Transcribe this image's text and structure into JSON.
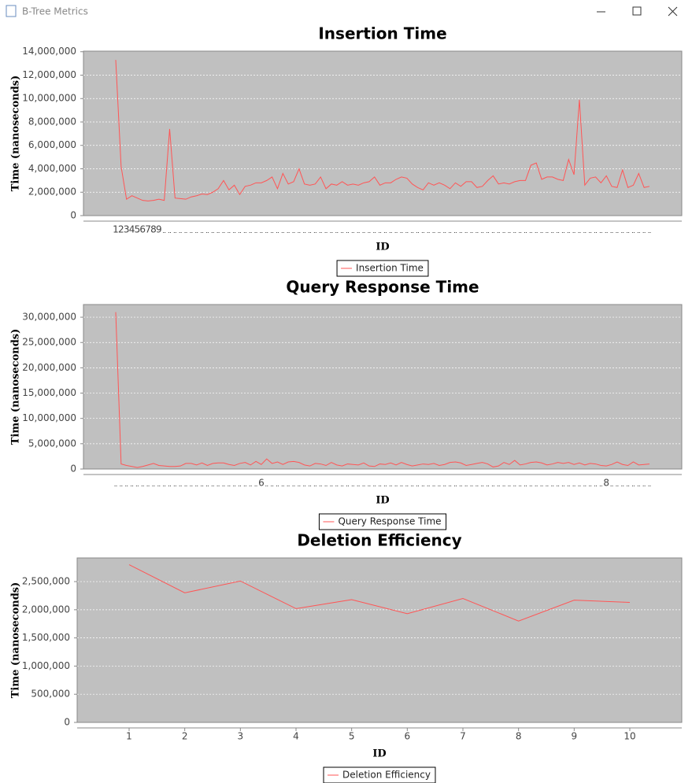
{
  "window_title": "B-Tree Metrics",
  "chart_data": [
    {
      "type": "line",
      "title": "Insertion Time",
      "x_label": "ID",
      "y_label": "Time (nanoseconds)",
      "grid": true,
      "legend": "bottom",
      "categories": [
        1,
        2,
        3,
        4,
        5,
        6,
        7,
        8,
        9,
        null,
        null,
        null,
        null,
        null,
        null,
        null,
        null,
        null,
        null,
        null,
        null,
        null,
        null,
        null,
        null,
        null,
        null,
        null,
        null,
        null,
        null,
        null,
        null,
        null,
        null,
        null,
        null,
        null,
        null,
        null,
        null,
        null,
        null,
        null,
        null,
        null,
        null,
        null,
        null,
        null,
        null,
        null,
        null,
        null,
        null,
        null,
        null,
        null,
        null,
        null,
        null,
        null,
        null,
        null,
        null,
        null,
        null,
        null,
        null,
        null,
        null,
        null,
        null,
        null,
        null,
        null,
        null,
        null,
        null,
        null,
        null,
        null,
        null,
        null,
        null,
        null,
        null,
        null,
        null,
        null,
        null,
        null,
        null,
        null,
        null,
        null,
        null,
        null,
        null,
        null
      ],
      "series": [
        {
          "name": "Insertion Time",
          "color": "#ff5555",
          "values": [
            13300000,
            4200000,
            1400000,
            1700000,
            1500000,
            1300000,
            1250000,
            1300000,
            1400000,
            1300000,
            7400000,
            1500000,
            1450000,
            1400000,
            1600000,
            1700000,
            1850000,
            1800000,
            2000000,
            2300000,
            3000000,
            2200000,
            2600000,
            1800000,
            2500000,
            2600000,
            2800000,
            2800000,
            3000000,
            3300000,
            2300000,
            3600000,
            2700000,
            2900000,
            4000000,
            2700000,
            2600000,
            2700000,
            3300000,
            2300000,
            2700000,
            2600000,
            2900000,
            2600000,
            2700000,
            2600000,
            2800000,
            2900000,
            3300000,
            2600000,
            2800000,
            2800000,
            3100000,
            3300000,
            3200000,
            2700000,
            2400000,
            2200000,
            2800000,
            2600000,
            2800000,
            2600000,
            2300000,
            2800000,
            2500000,
            2900000,
            2900000,
            2400000,
            2500000,
            3000000,
            3400000,
            2700000,
            2800000,
            2700000,
            2900000,
            3000000,
            3000000,
            4300000,
            4500000,
            3100000,
            3300000,
            3300000,
            3100000,
            3000000,
            4800000,
            3500000,
            9900000,
            2600000,
            3200000,
            3300000,
            2800000,
            3400000,
            2500000,
            2400000,
            3900000,
            2400000,
            2600000,
            3600000,
            2400000,
            2500000
          ]
        }
      ],
      "ylim": [
        0,
        14050000
      ],
      "yticks": [
        0,
        {
          "value": 2000000,
          "label": "2,000,000"
        },
        {
          "value": 4000000,
          "label": "4,000,000"
        },
        {
          "value": 6000000,
          "label": "6,000,000"
        },
        {
          "value": 8000000,
          "label": "8,000,000"
        },
        {
          "value": 10000000,
          "label": "10,000,000"
        },
        {
          "value": 12000000,
          "label": "12,000,000"
        },
        {
          "value": 14000000,
          "label": "14,000,000"
        }
      ]
    },
    {
      "type": "line",
      "title": "Query Response Time",
      "x_label": "ID",
      "y_label": "Time (nanoseconds)",
      "grid": true,
      "legend": "bottom",
      "categories": [
        null,
        null,
        null,
        null,
        null,
        null,
        null,
        null,
        null,
        null,
        null,
        null,
        null,
        null,
        null,
        null,
        null,
        null,
        null,
        null,
        null,
        null,
        null,
        null,
        null,
        null,
        null,
        6,
        null,
        null,
        null,
        null,
        null,
        null,
        null,
        null,
        null,
        null,
        null,
        null,
        null,
        null,
        null,
        null,
        null,
        null,
        null,
        null,
        null,
        null,
        null,
        null,
        null,
        null,
        null,
        null,
        null,
        null,
        null,
        null,
        null,
        null,
        null,
        null,
        null,
        null,
        null,
        null,
        null,
        null,
        null,
        null,
        null,
        null,
        null,
        null,
        null,
        null,
        null,
        null,
        null,
        null,
        null,
        null,
        null,
        null,
        null,
        null,
        null,
        null,
        null,
        8,
        null,
        null,
        null,
        null,
        null,
        null,
        null,
        null
      ],
      "series": [
        {
          "name": "Query Response Time",
          "color": "#ff5555",
          "values": [
            31000000,
            1000000,
            700000,
            500000,
            300000,
            500000,
            800000,
            1100000,
            700000,
            600000,
            500000,
            500000,
            600000,
            1100000,
            1100000,
            800000,
            1200000,
            700000,
            1100000,
            1200000,
            1200000,
            900000,
            700000,
            1100000,
            1300000,
            800000,
            1500000,
            900000,
            2000000,
            1100000,
            1400000,
            900000,
            1400000,
            1500000,
            1300000,
            800000,
            600000,
            1100000,
            1000000,
            700000,
            1300000,
            800000,
            600000,
            1000000,
            900000,
            800000,
            1200000,
            600000,
            500000,
            1000000,
            900000,
            1200000,
            800000,
            1300000,
            900000,
            600000,
            800000,
            1000000,
            900000,
            1100000,
            700000,
            900000,
            1300000,
            1400000,
            1200000,
            700000,
            900000,
            1100000,
            1300000,
            1000000,
            400000,
            600000,
            1300000,
            900000,
            1700000,
            800000,
            1000000,
            1300000,
            1400000,
            1200000,
            800000,
            1000000,
            1300000,
            1100000,
            1300000,
            900000,
            1200000,
            800000,
            1100000,
            1000000,
            700000,
            600000,
            900000,
            1400000,
            900000,
            700000,
            1400000,
            800000,
            900000,
            1000000
          ]
        }
      ],
      "ylim": [
        0,
        32500000
      ],
      "yticks": [
        0,
        {
          "value": 5000000,
          "label": "5,000,000"
        },
        {
          "value": 10000000,
          "label": "10,000,000"
        },
        {
          "value": 15000000,
          "label": "15,000,000"
        },
        {
          "value": 20000000,
          "label": "20,000,000"
        },
        {
          "value": 25000000,
          "label": "25,000,000"
        },
        {
          "value": 30000000,
          "label": "30,000,000"
        }
      ]
    },
    {
      "type": "line",
      "title": "Deletion Efficiency",
      "x_label": "ID",
      "y_label": "Time (nanoseconds)",
      "grid": true,
      "legend": "bottom",
      "categories": [
        1,
        2,
        3,
        4,
        5,
        6,
        7,
        8,
        9,
        10
      ],
      "series": [
        {
          "name": "Deletion Efficiency",
          "color": "#ff5555",
          "values": [
            2800000,
            2300000,
            2510000,
            2020000,
            2180000,
            1930000,
            2200000,
            1800000,
            2170000,
            2130000
          ]
        }
      ],
      "ylim": [
        0,
        2920000
      ],
      "yticks": [
        0,
        {
          "value": 500000,
          "label": "500,000"
        },
        {
          "value": 1000000,
          "label": "1,000,000"
        },
        {
          "value": 1500000,
          "label": "1,500,000"
        },
        {
          "value": 2000000,
          "label": "2,000,000"
        },
        {
          "value": 2500000,
          "label": "2,500,000"
        }
      ]
    }
  ]
}
